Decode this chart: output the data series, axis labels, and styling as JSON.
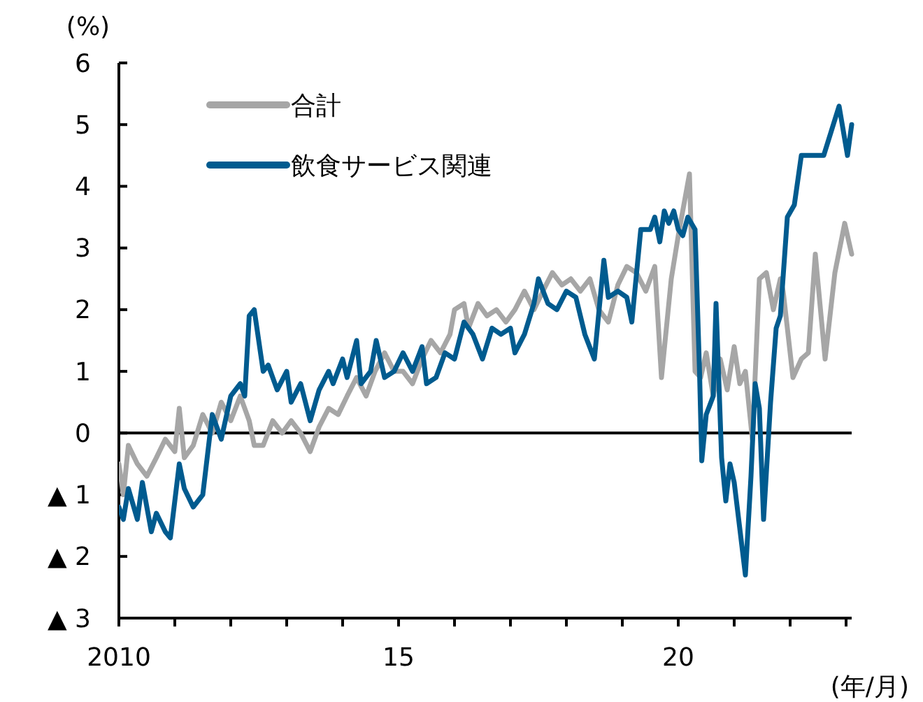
{
  "chart_data": {
    "type": "line",
    "ylabel": "(%)",
    "xlabel": "(年/月)",
    "xlim": [
      2010,
      2023.1
    ],
    "xticks": [
      {
        "value": 2010,
        "label": "2010"
      },
      {
        "value": 2011,
        "label": null
      },
      {
        "value": 2012,
        "label": null
      },
      {
        "value": 2013,
        "label": null
      },
      {
        "value": 2014,
        "label": null
      },
      {
        "value": 2015,
        "label": "15"
      },
      {
        "value": 2016,
        "label": null
      },
      {
        "value": 2017,
        "label": null
      },
      {
        "value": 2018,
        "label": null
      },
      {
        "value": 2019,
        "label": null
      },
      {
        "value": 2020,
        "label": "20"
      },
      {
        "value": 2021,
        "label": null
      },
      {
        "value": 2022,
        "label": null
      },
      {
        "value": 2023,
        "label": null
      }
    ],
    "ylim": [
      -3,
      6
    ],
    "yticks": [
      {
        "value": -3,
        "label": "▲ 3"
      },
      {
        "value": -2,
        "label": "▲ 2"
      },
      {
        "value": -1,
        "label": "▲ 1"
      },
      0,
      1,
      2,
      3,
      4,
      5,
      6
    ],
    "grid": false,
    "legend": "top left",
    "marker": "none",
    "line_style": "solid",
    "ref_lines": [
      {
        "axis": "y",
        "value": 0,
        "color": "#000000"
      }
    ],
    "series": [
      {
        "name": "合計",
        "color": "#a6a6a6",
        "x": [
          2010,
          2010.08,
          2010.17,
          2010.33,
          2010.5,
          2010.67,
          2010.83,
          2011,
          2011.08,
          2011.17,
          2011.33,
          2011.5,
          2011.67,
          2011.83,
          2012,
          2012.17,
          2012.33,
          2012.42,
          2012.58,
          2012.75,
          2012.92,
          2013.08,
          2013.25,
          2013.42,
          2013.58,
          2013.75,
          2013.92,
          2014.08,
          2014.25,
          2014.42,
          2014.58,
          2014.75,
          2014.92,
          2015.08,
          2015.25,
          2015.42,
          2015.58,
          2015.75,
          2015.92,
          2016,
          2016.17,
          2016.25,
          2016.42,
          2016.58,
          2016.75,
          2016.92,
          2017.08,
          2017.25,
          2017.42,
          2017.58,
          2017.75,
          2017.92,
          2018.08,
          2018.25,
          2018.42,
          2018.58,
          2018.75,
          2018.92,
          2019.08,
          2019.25,
          2019.42,
          2019.58,
          2019.7,
          2019.875,
          2020,
          2020.2,
          2020.3,
          2020.4,
          2020.5,
          2020.625,
          2020.75,
          2020.875,
          2021,
          2021.1,
          2021.2,
          2021.325,
          2021.45,
          2021.575,
          2021.7,
          2021.825,
          2021.875,
          2022.05,
          2022.2,
          2022.325,
          2022.45,
          2022.625,
          2022.8,
          2022.975,
          2023.1
        ],
        "values": [
          -0.5,
          -1.0,
          -0.2,
          -0.5,
          -0.7,
          -0.4,
          -0.1,
          -0.3,
          0.4,
          -0.4,
          -0.2,
          0.3,
          0.0,
          0.5,
          0.2,
          0.6,
          0.2,
          -0.2,
          -0.2,
          0.2,
          0.0,
          0.2,
          0.0,
          -0.3,
          0.1,
          0.4,
          0.3,
          0.6,
          0.9,
          0.6,
          1.0,
          1.3,
          1.0,
          1.0,
          0.8,
          1.2,
          1.5,
          1.3,
          1.6,
          2.0,
          2.1,
          1.7,
          2.1,
          1.9,
          2.0,
          1.8,
          2.0,
          2.3,
          2.0,
          2.3,
          2.6,
          2.4,
          2.5,
          2.3,
          2.5,
          2.0,
          1.8,
          2.4,
          2.7,
          2.6,
          2.3,
          2.7,
          0.9,
          2.5,
          3.2,
          4.2,
          1.0,
          0.9,
          1.3,
          0.6,
          1.2,
          0.7,
          1.4,
          0.8,
          1.0,
          -0.1,
          2.5,
          2.6,
          2.0,
          2.5,
          2.3,
          0.9,
          1.2,
          1.3,
          2.9,
          1.2,
          2.6,
          3.4,
          2.9
        ]
      },
      {
        "name": "飲食サービス関連",
        "color": "#005b8f",
        "x": [
          2010,
          2010.08,
          2010.17,
          2010.33,
          2010.42,
          2010.58,
          2010.67,
          2010.83,
          2010.92,
          2011.08,
          2011.17,
          2011.33,
          2011.5,
          2011.67,
          2011.83,
          2012,
          2012.17,
          2012.25,
          2012.33,
          2012.42,
          2012.58,
          2012.67,
          2012.83,
          2013,
          2013.08,
          2013.25,
          2013.42,
          2013.58,
          2013.75,
          2013.83,
          2014,
          2014.08,
          2014.25,
          2014.33,
          2014.5,
          2014.6,
          2014.75,
          2014.92,
          2015.08,
          2015.25,
          2015.42,
          2015.5,
          2015.67,
          2015.83,
          2016,
          2016.17,
          2016.33,
          2016.5,
          2016.67,
          2016.83,
          2017,
          2017.08,
          2017.25,
          2017.42,
          2017.5,
          2017.67,
          2017.83,
          2018,
          2018.17,
          2018.33,
          2018.5,
          2018.67,
          2018.75,
          2018.92,
          2019.08,
          2019.17,
          2019.33,
          2019.5,
          2019.58,
          2019.67,
          2019.75,
          2019.83,
          2019.92,
          2020,
          2020.08,
          2020.17,
          2020.3,
          2020.38,
          2020.42,
          2020.5,
          2020.625,
          2020.675,
          2020.775,
          2020.85,
          2020.925,
          2021,
          2021.2,
          2021.3,
          2021.375,
          2021.45,
          2021.525,
          2021.65,
          2021.75,
          2021.825,
          2021.95,
          2022.075,
          2022.2,
          2022.375,
          2022.6,
          2022.875,
          2023.025,
          2023.1
        ],
        "values": [
          -1.2,
          -1.4,
          -0.9,
          -1.4,
          -0.8,
          -1.6,
          -1.3,
          -1.6,
          -1.7,
          -0.5,
          -0.9,
          -1.2,
          -1.0,
          0.3,
          -0.1,
          0.6,
          0.8,
          0.6,
          1.9,
          2.0,
          1.0,
          1.1,
          0.7,
          1.0,
          0.5,
          0.8,
          0.2,
          0.7,
          1.0,
          0.8,
          1.2,
          0.9,
          1.5,
          0.8,
          1.0,
          1.5,
          0.9,
          1.0,
          1.3,
          1.0,
          1.4,
          0.8,
          0.9,
          1.3,
          1.2,
          1.8,
          1.6,
          1.2,
          1.7,
          1.6,
          1.7,
          1.3,
          1.6,
          2.1,
          2.5,
          2.1,
          2.0,
          2.3,
          2.2,
          1.6,
          1.2,
          2.8,
          2.2,
          2.3,
          2.2,
          1.8,
          3.3,
          3.3,
          3.5,
          3.1,
          3.6,
          3.4,
          3.6,
          3.3,
          3.2,
          3.5,
          3.3,
          1.0,
          -0.45,
          0.3,
          0.6,
          2.1,
          -0.4,
          -1.1,
          -0.5,
          -0.8,
          -2.3,
          -0.7,
          0.8,
          0.4,
          -1.4,
          0.5,
          1.7,
          1.9,
          3.5,
          3.7,
          4.5,
          4.5,
          4.5,
          5.3,
          4.5,
          5.0
        ]
      }
    ]
  }
}
